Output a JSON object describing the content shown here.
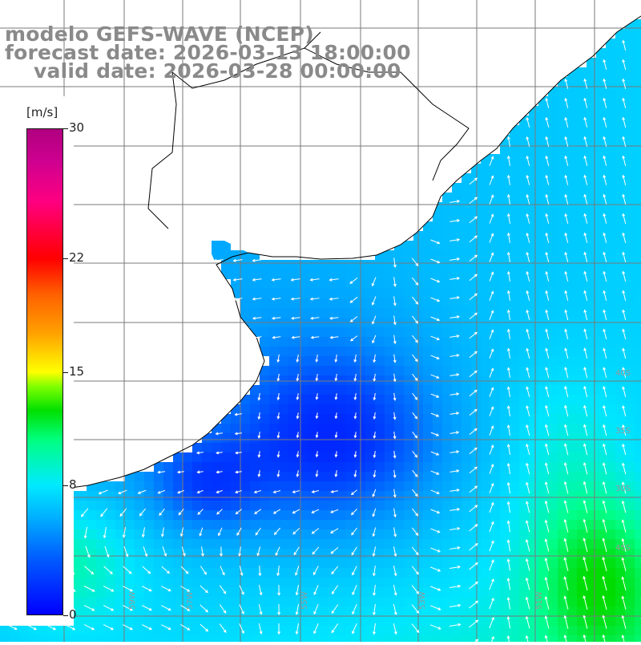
{
  "header": {
    "line1": "modelo GEFS-WAVE (NCEP)",
    "line2": "forecast date: 2026-03-13 18:00:00",
    "line3": "valid date: 2026-03-28 00:00:00"
  },
  "colorbar": {
    "unit": "[m/s]",
    "ticks": [
      {
        "label": "30",
        "value": 30
      },
      {
        "label": "22",
        "value": 22
      },
      {
        "label": "15",
        "value": 15
      },
      {
        "label": "8",
        "value": 8
      },
      {
        "label": "0",
        "value": 0
      }
    ],
    "range": [
      0,
      30
    ],
    "colors": [
      "#0000ff",
      "#00b0ff",
      "#00eaff",
      "#00e000",
      "#ffff00",
      "#ff6000",
      "#ff0000",
      "#b00080"
    ]
  },
  "map": {
    "region": "Rio de la Plata and South Atlantic shelf",
    "variable": "wind speed and direction",
    "lat_labels": [
      "30S",
      "35S",
      "40S",
      "45S"
    ],
    "lon_labels": [
      "61W",
      "59W",
      "57W",
      "55W",
      "53W",
      "51W"
    ],
    "land_color": "#ffffff",
    "grid_color": "#7a7a7a",
    "arrow_color": "#ffffff"
  }
}
